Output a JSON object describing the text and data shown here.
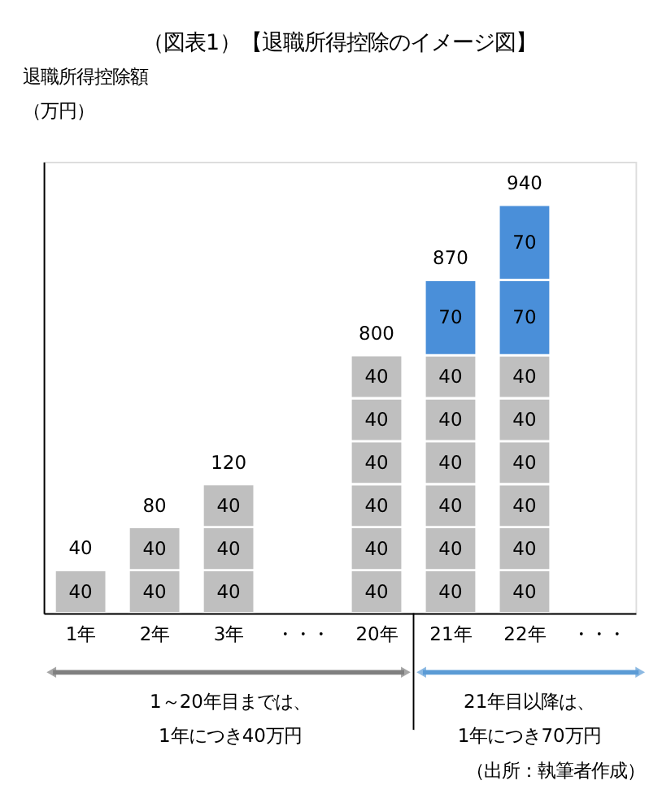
{
  "chart_data": {
    "type": "bar",
    "title": "（図表1）【退職所得控除のイメージ図】",
    "ylabel": "退職所得控除額（万円）",
    "categories": [
      "1年",
      "2年",
      "3年",
      "・・・",
      "20年",
      "21年",
      "22年",
      "・・・"
    ],
    "ylim": [
      0,
      420
    ],
    "stacked": true,
    "data_labels": true,
    "series": [
      {
        "color": "#bfbfbf",
        "values": [
          40,
          40,
          40,
          null,
          40,
          40,
          40,
          null
        ]
      },
      {
        "color": "#bfbfbf",
        "values": [
          null,
          40,
          40,
          null,
          40,
          40,
          40,
          null
        ]
      },
      {
        "color": "#bfbfbf",
        "values": [
          null,
          null,
          40,
          null,
          40,
          40,
          40,
          null
        ]
      },
      {
        "color": "#bfbfbf",
        "values": [
          null,
          null,
          null,
          null,
          40,
          40,
          40,
          null
        ]
      },
      {
        "color": "#bfbfbf",
        "values": [
          null,
          null,
          null,
          null,
          40,
          40,
          40,
          null
        ]
      },
      {
        "color": "#bfbfbf",
        "values": [
          null,
          null,
          null,
          null,
          40,
          40,
          40,
          null
        ]
      },
      {
        "color": "#4a8fd9",
        "values": [
          null,
          null,
          null,
          null,
          null,
          70,
          70,
          null
        ]
      },
      {
        "color": "#4a8fd9",
        "values": [
          null,
          null,
          null,
          null,
          null,
          null,
          70,
          null
        ]
      }
    ],
    "annotations": [
      "1～20年目までは、1年につき40万円",
      "21年目以降は、1年につき70万円",
      "（出所：執筆者作成）",
      {
        "text": "40",
        "x": "1年",
        "y": 40
      },
      {
        "text": "80",
        "x": "2年",
        "y": 80
      },
      {
        "text": "120",
        "x": "3年",
        "y": 120
      },
      {
        "text": "800",
        "x": "20年",
        "y": 240
      },
      {
        "text": "870",
        "x": "21年",
        "y": 310
      },
      {
        "text": "940",
        "x": "22年",
        "y": 380
      }
    ]
  }
}
